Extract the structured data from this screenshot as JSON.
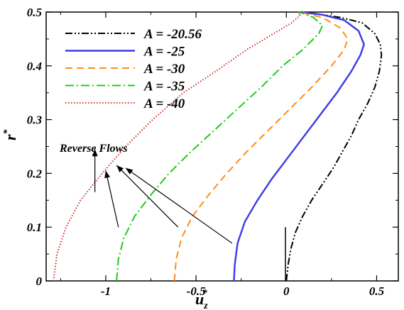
{
  "chart_data": {
    "type": "line",
    "xlabel": "u",
    "xlabel_sub": "z",
    "xlabel_sup": "*",
    "ylabel": "r",
    "ylabel_sup": "*",
    "xlim": [
      -1.33,
      0.62
    ],
    "ylim": [
      0,
      0.5
    ],
    "xticks": [
      -1,
      -0.5,
      0,
      0.5
    ],
    "xtick_labels": [
      "-1",
      "-0.5",
      "0",
      "0.5"
    ],
    "yticks": [
      0,
      0.1,
      0.2,
      0.3,
      0.4,
      0.5
    ],
    "ytick_labels": [
      "0",
      "0.1",
      "0.2",
      "0.3",
      "0.4",
      "0.5"
    ],
    "grid": false,
    "legend_position": "top-left",
    "series": [
      {
        "name": "A = -20.56",
        "color": "#000000",
        "dash": "dash-dot-dot",
        "points": [
          [
            0.0,
            0.0
          ],
          [
            0.01,
            0.03
          ],
          [
            0.025,
            0.06
          ],
          [
            0.05,
            0.09
          ],
          [
            0.09,
            0.12
          ],
          [
            0.14,
            0.15
          ],
          [
            0.2,
            0.18
          ],
          [
            0.26,
            0.21
          ],
          [
            0.31,
            0.24
          ],
          [
            0.36,
            0.27
          ],
          [
            0.4,
            0.3
          ],
          [
            0.45,
            0.33
          ],
          [
            0.49,
            0.36
          ],
          [
            0.515,
            0.39
          ],
          [
            0.527,
            0.42
          ],
          [
            0.52,
            0.44
          ],
          [
            0.49,
            0.46
          ],
          [
            0.42,
            0.48
          ],
          [
            0.3,
            0.49
          ],
          [
            0.1,
            0.5
          ]
        ]
      },
      {
        "name": "A = -25",
        "color": "#3a3ae6",
        "dash": "solid",
        "points": [
          [
            -0.29,
            0.0
          ],
          [
            -0.286,
            0.03
          ],
          [
            -0.27,
            0.07
          ],
          [
            -0.23,
            0.11
          ],
          [
            -0.16,
            0.15
          ],
          [
            -0.08,
            0.19
          ],
          [
            0.01,
            0.23
          ],
          [
            0.1,
            0.27
          ],
          [
            0.19,
            0.31
          ],
          [
            0.28,
            0.35
          ],
          [
            0.36,
            0.39
          ],
          [
            0.41,
            0.42
          ],
          [
            0.43,
            0.44
          ],
          [
            0.4,
            0.465
          ],
          [
            0.32,
            0.485
          ],
          [
            0.2,
            0.495
          ],
          [
            0.08,
            0.5
          ]
        ]
      },
      {
        "name": "A = -30",
        "color": "#ff8c1a",
        "dash": "dashed",
        "points": [
          [
            -0.62,
            0.0
          ],
          [
            -0.61,
            0.04
          ],
          [
            -0.58,
            0.08
          ],
          [
            -0.52,
            0.12
          ],
          [
            -0.43,
            0.16
          ],
          [
            -0.33,
            0.2
          ],
          [
            -0.22,
            0.24
          ],
          [
            -0.1,
            0.28
          ],
          [
            0.02,
            0.32
          ],
          [
            0.14,
            0.36
          ],
          [
            0.25,
            0.4
          ],
          [
            0.32,
            0.43
          ],
          [
            0.34,
            0.45
          ],
          [
            0.3,
            0.47
          ],
          [
            0.2,
            0.49
          ],
          [
            0.07,
            0.5
          ]
        ]
      },
      {
        "name": "A = -35",
        "color": "#1ccc1c",
        "dash": "dash-dot",
        "points": [
          [
            -0.94,
            0.0
          ],
          [
            -0.93,
            0.04
          ],
          [
            -0.9,
            0.08
          ],
          [
            -0.84,
            0.12
          ],
          [
            -0.75,
            0.16
          ],
          [
            -0.65,
            0.2
          ],
          [
            -0.53,
            0.24
          ],
          [
            -0.4,
            0.28
          ],
          [
            -0.27,
            0.32
          ],
          [
            -0.14,
            0.36
          ],
          [
            -0.02,
            0.4
          ],
          [
            0.09,
            0.43
          ],
          [
            0.18,
            0.46
          ],
          [
            0.2,
            0.475
          ],
          [
            0.15,
            0.49
          ],
          [
            0.07,
            0.5
          ]
        ]
      },
      {
        "name": "A = -40",
        "color": "#d03030",
        "dash": "dotted",
        "points": [
          [
            -1.29,
            0.0
          ],
          [
            -1.27,
            0.05
          ],
          [
            -1.22,
            0.1
          ],
          [
            -1.14,
            0.15
          ],
          [
            -1.02,
            0.2
          ],
          [
            -0.89,
            0.25
          ],
          [
            -0.74,
            0.3
          ],
          [
            -0.57,
            0.35
          ],
          [
            -0.39,
            0.39
          ],
          [
            -0.22,
            0.43
          ],
          [
            -0.07,
            0.46
          ],
          [
            0.03,
            0.48
          ],
          [
            0.08,
            0.495
          ],
          [
            0.06,
            0.5
          ]
        ]
      }
    ],
    "annotation": {
      "text": "Reverse Flows",
      "vertical_line": {
        "x": -0.005,
        "y1": 0.0,
        "y2": 0.1
      }
    }
  }
}
